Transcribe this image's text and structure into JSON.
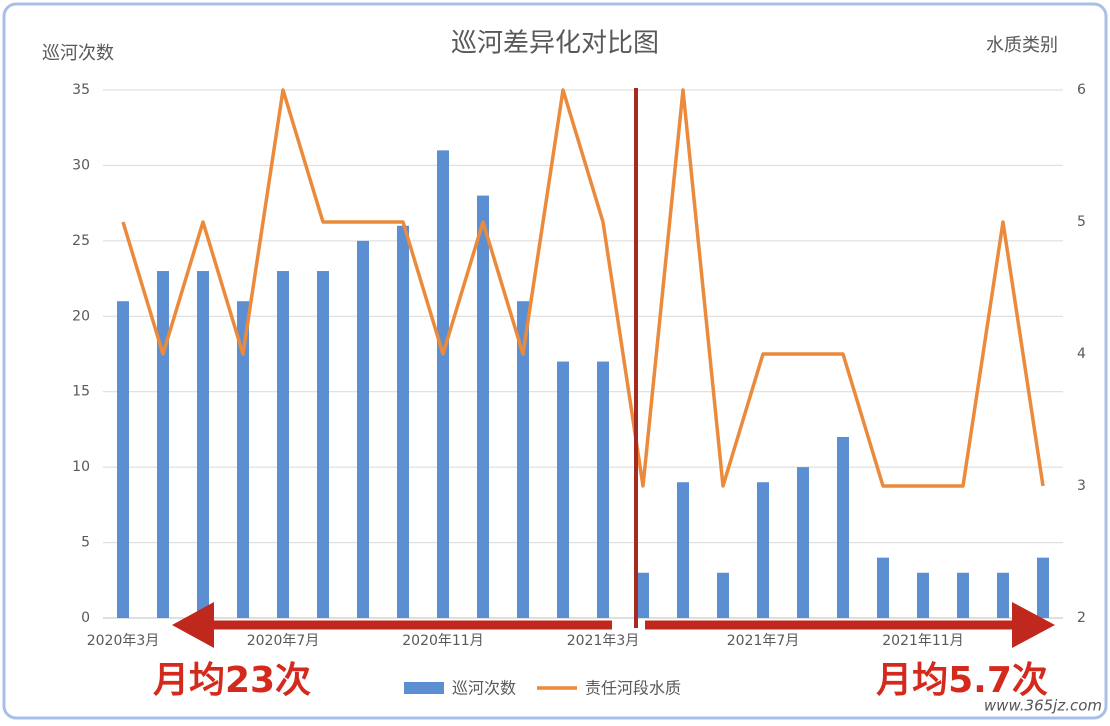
{
  "chart_data": {
    "type": "bar-line",
    "title": "巡河差异化对比图",
    "y_label": "巡河次数",
    "y2_label": "水质类别",
    "categories": [
      "2020年3月",
      null,
      null,
      null,
      "2020年7月",
      null,
      null,
      null,
      "2020年11月",
      null,
      null,
      null,
      "2021年3月",
      null,
      null,
      null,
      "2021年7月",
      null,
      null,
      null,
      "2021年11月",
      null,
      null,
      null
    ],
    "series": [
      {
        "name": "巡河次数",
        "type": "bar",
        "color": "#5b8fd2",
        "values": [
          21,
          23,
          23,
          21,
          23,
          23,
          25,
          26,
          31,
          28,
          21,
          17,
          17,
          3,
          9,
          3,
          9,
          10,
          12,
          4,
          3,
          3,
          3,
          4
        ]
      },
      {
        "name": "责任河段水质",
        "type": "line",
        "axis": "y2",
        "color": "#ec8a3c",
        "values": [
          5,
          4,
          5,
          4,
          6,
          5,
          5,
          5,
          4,
          5,
          4,
          6,
          5,
          3,
          6,
          3,
          4,
          4,
          4,
          3,
          3,
          3,
          5,
          3
        ]
      }
    ],
    "ylim": [
      0,
      35
    ],
    "yticks": [
      0,
      5,
      10,
      15,
      20,
      25,
      30,
      35
    ],
    "y2lim": [
      2,
      6
    ],
    "y2ticks": [
      2,
      3,
      4,
      5,
      6
    ],
    "grid": true,
    "annotations": [
      "月均23次",
      "月均5.7次"
    ],
    "watermark": "www.365jz.com"
  }
}
